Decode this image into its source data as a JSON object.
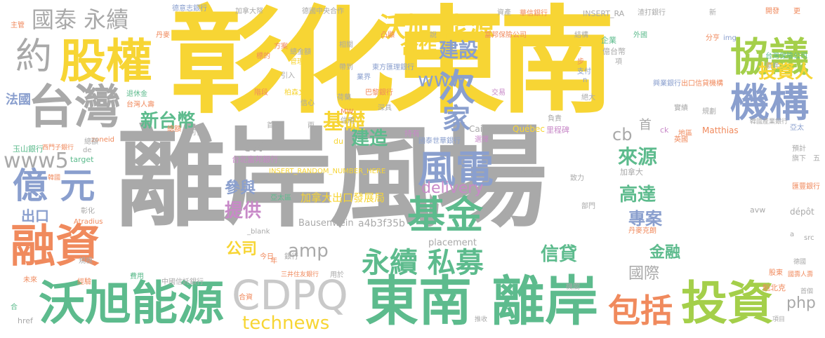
{
  "palette": {
    "yellow": "#f7d534",
    "gray": "#a9a9a9",
    "green": "#5dbb8d",
    "blue": "#8a9fce",
    "purple": "#c889c8",
    "orange": "#f08a5d",
    "lime": "#a4cf4a",
    "light": "#c9c9c9"
  },
  "words": [
    {
      "id": "w-lian",
      "text": "離岸風場",
      "color": "gray"
    },
    {
      "id": "w-zhanghua-dongnan",
      "text": "彰化東南",
      "color": "yellow"
    },
    {
      "id": "w-cdpq",
      "text": "CDPQ",
      "color": "light"
    },
    {
      "id": "w-dongnan",
      "text": "東南",
      "color": "green"
    },
    {
      "id": "w-lian2",
      "text": "離岸",
      "color": "green"
    },
    {
      "id": "w-wojxu-energy",
      "text": "沃旭能源",
      "color": "green"
    },
    {
      "id": "w-taiwan",
      "text": "台灣",
      "color": "gray"
    },
    {
      "id": "w-guquan",
      "text": "股權",
      "color": "yellow"
    },
    {
      "id": "w-rongzi",
      "text": "融資",
      "color": "orange"
    },
    {
      "id": "w-touzi",
      "text": "投資",
      "color": "lime"
    },
    {
      "id": "w-baokuo",
      "text": "包括",
      "color": "orange"
    },
    {
      "id": "w-jijin",
      "text": "基金",
      "color": "green"
    },
    {
      "id": "w-fengdian",
      "text": "風電",
      "color": "blue"
    },
    {
      "id": "w-jigou",
      "text": "機構",
      "color": "blue"
    },
    {
      "id": "w-xieyi",
      "text": "協議",
      "color": "lime"
    },
    {
      "id": "w-yiyuan",
      "text": "億 元",
      "color": "blue"
    },
    {
      "id": "w-guotai",
      "text": "國泰 永續",
      "color": "gray"
    },
    {
      "id": "w-wojxu2",
      "text": "沃旭",
      "color": "yellow"
    },
    {
      "id": "w-nengyuan",
      "text": "能源",
      "color": "yellow"
    },
    {
      "id": "w-ci",
      "text": "次",
      "color": "blue"
    },
    {
      "id": "w-jia",
      "text": "家",
      "color": "blue"
    },
    {
      "id": "w-yue",
      "text": "約",
      "color": "gray"
    },
    {
      "id": "w-yongxu-simu",
      "text": "永續 私募",
      "color": "green"
    },
    {
      "id": "w-touziren",
      "text": "投資人",
      "color": "yellow"
    },
    {
      "id": "w-jianshe",
      "text": "建設",
      "color": "blue"
    },
    {
      "id": "w-hezuo",
      "text": "合作",
      "color": "yellow"
    },
    {
      "id": "w-www",
      "text": "www",
      "color": "blue"
    },
    {
      "id": "w-xintaibi",
      "text": "新台幣",
      "color": "green"
    },
    {
      "id": "w-jichu",
      "text": "基礎",
      "color": "yellow"
    },
    {
      "id": "w-jianzao",
      "text": "建造",
      "color": "green"
    },
    {
      "id": "w-www5",
      "text": "www5",
      "color": "gray"
    },
    {
      "id": "w-tw",
      "text": "tw",
      "color": "gray"
    },
    {
      "id": "w-delivery",
      "text": "delivery",
      "color": "purple"
    },
    {
      "id": "w-canyu",
      "text": "參與",
      "color": "blue"
    },
    {
      "id": "w-tigong",
      "text": "提供",
      "color": "purple"
    },
    {
      "id": "w-gongsi",
      "text": "公司",
      "color": "yellow"
    },
    {
      "id": "w-amp",
      "text": "amp",
      "color": "gray"
    },
    {
      "id": "w-laiyuan",
      "text": "來源",
      "color": "green"
    },
    {
      "id": "w-gaoda",
      "text": "高達",
      "color": "green"
    },
    {
      "id": "w-zhuanan",
      "text": "專案",
      "color": "blue"
    },
    {
      "id": "w-jinrong",
      "text": "金融",
      "color": "green"
    },
    {
      "id": "w-guoji",
      "text": "國際",
      "color": "gray"
    },
    {
      "id": "w-xindai",
      "text": "信貸",
      "color": "green"
    },
    {
      "id": "w-technews",
      "text": "technews",
      "color": "yellow"
    },
    {
      "id": "w-php",
      "text": "php",
      "color": "gray"
    },
    {
      "id": "w-cb",
      "text": "cb",
      "color": "gray"
    },
    {
      "id": "w-shou",
      "text": "首",
      "color": "gray"
    },
    {
      "id": "w-chukou",
      "text": "出口",
      "color": "blue"
    },
    {
      "id": "w-faguo",
      "text": "法國",
      "color": "blue"
    },
    {
      "id": "w-jianada-cb",
      "text": "加拿大出口發展局",
      "color": "yellow"
    },
    {
      "id": "w-a4b",
      "text": "a4b3f35b",
      "color": "gray"
    },
    {
      "id": "w-bausen",
      "text": "Bausenwein",
      "color": "gray"
    },
    {
      "id": "w-placement",
      "text": "placement",
      "color": "gray"
    },
    {
      "id": "w-insert",
      "text": "INSERT_RANDOM_NUMBER_HERE",
      "color": "yellow"
    },
    {
      "id": "w-taibei-fubon",
      "text": "台北富邦銀行",
      "color": "purple"
    },
    {
      "id": "w-yushan",
      "text": "玉山銀行",
      "color": "green"
    },
    {
      "id": "w-zoneid",
      "text": "zoneid",
      "color": "orange"
    },
    {
      "id": "w-target",
      "text": "target",
      "color": "green"
    },
    {
      "id": "w-de",
      "text": "de",
      "color": "gray"
    },
    {
      "id": "w-blank",
      "text": "_blank",
      "color": "gray"
    },
    {
      "id": "w-quebec",
      "text": "Québec",
      "color": "yellow"
    },
    {
      "id": "w-caisse",
      "text": "Caisse",
      "color": "gray"
    },
    {
      "id": "w-matthias",
      "text": "Matthias",
      "color": "orange"
    },
    {
      "id": "w-depot",
      "text": "dépôt",
      "color": "gray"
    },
    {
      "id": "w-avw",
      "text": "avw",
      "color": "gray"
    },
    {
      "id": "w-src",
      "text": "src",
      "color": "gray"
    },
    {
      "id": "w-href",
      "text": "href",
      "color": "gray"
    },
    {
      "id": "w-du",
      "text": "du",
      "color": "yellow"
    },
    {
      "id": "w-atradius",
      "text": "Atradius",
      "color": "orange"
    },
    {
      "id": "w-ck",
      "text": "ck",
      "color": "purple"
    },
    {
      "id": "w-img",
      "text": "img",
      "color": "blue"
    },
    {
      "id": "w-insert-ra",
      "text": "INSERT_RA",
      "color": "gray"
    },
    {
      "id": "w-dez-bank",
      "text": "德意志銀行",
      "color": "blue"
    },
    {
      "id": "w-jianada-dabei",
      "text": "加拿大帑",
      "color": "gray"
    },
    {
      "id": "w-deguo-zhongyang",
      "text": "德國中央合作",
      "color": "gray"
    },
    {
      "id": "w-zichan",
      "text": "資產",
      "color": "gray"
    },
    {
      "id": "w-huaxin",
      "text": "華信銀行",
      "color": "orange"
    },
    {
      "id": "w-zaoda",
      "text": "渣打銀行",
      "color": "gray"
    },
    {
      "id": "w-xin",
      "text": "新",
      "color": "gray"
    },
    {
      "id": "w-kaifa",
      "text": "開發",
      "color": "orange"
    },
    {
      "id": "w-geng",
      "text": "更",
      "color": "orange"
    },
    {
      "id": "w-zhuguan",
      "text": "主管",
      "color": "orange"
    },
    {
      "id": "w-danmai",
      "text": "丹麥",
      "color": "orange"
    },
    {
      "id": "w-tufang",
      "text": "凸顯",
      "color": "orange"
    },
    {
      "id": "w-shuo",
      "text": "說",
      "color": "gray"
    },
    {
      "id": "w-fubon-baoxian",
      "text": "富邦保險公司",
      "color": "orange"
    },
    {
      "id": "w-jiegou",
      "text": "結構",
      "color": "gray"
    },
    {
      "id": "w-waiguo",
      "text": "外國",
      "color": "green"
    },
    {
      "id": "w-fenheng",
      "text": "分亨",
      "color": "orange"
    },
    {
      "id": "w-qiye",
      "text": "企業",
      "color": "green"
    },
    {
      "id": "w-taiwan-baoxian",
      "text": "台灣保險公司",
      "color": "green"
    },
    {
      "id": "w-yitai",
      "text": "億台幣",
      "color": "gray"
    },
    {
      "id": "w-fangan",
      "text": "方案",
      "color": "orange"
    },
    {
      "id": "w-biaode",
      "text": "標的",
      "color": "orange"
    },
    {
      "id": "w-zongjinyin",
      "text": "總金額",
      "color": "gray"
    },
    {
      "id": "w-guanli",
      "text": "管理",
      "color": "yellow"
    },
    {
      "id": "w-xiangguan",
      "text": "相關",
      "color": "gray"
    },
    {
      "id": "w-daidao",
      "text": "帶到",
      "color": "gray"
    },
    {
      "id": "w-yeje",
      "text": "業界",
      "color": "blue"
    },
    {
      "id": "w-dongfang",
      "text": "東方匯理銀行",
      "color": "blue"
    },
    {
      "id": "w-chin-bu",
      "text": "步",
      "color": "orange"
    },
    {
      "id": "w-xiang",
      "text": "項",
      "color": "gray"
    },
    {
      "id": "w-zhifu",
      "text": "支付",
      "color": "blue"
    },
    {
      "id": "w-xingye",
      "text": "興業銀行",
      "color": "blue"
    },
    {
      "id": "w-chukou-xindai",
      "text": "出口信貸機構",
      "color": "orange"
    },
    {
      "id": "w-haoyu",
      "text": "豪伴",
      "color": "gray"
    },
    {
      "id": "w-tuixiu",
      "text": "退休金",
      "color": "green"
    },
    {
      "id": "w-taiwan-renshou",
      "text": "台灣人壽",
      "color": "orange"
    },
    {
      "id": "w-jieduan",
      "text": "階段",
      "color": "orange"
    },
    {
      "id": "w-bosen",
      "text": "柏森文",
      "color": "yellow"
    },
    {
      "id": "w-bali",
      "text": "巴黎銀行",
      "color": "orange"
    },
    {
      "id": "w-yinru",
      "text": "引入",
      "color": "gray"
    },
    {
      "id": "w-jiaoyi",
      "text": "交易",
      "color": "purple"
    },
    {
      "id": "w-jueda",
      "text": "絕大",
      "color": "gray"
    },
    {
      "id": "w-xinxin",
      "text": "信心",
      "color": "gray"
    },
    {
      "id": "w-helan",
      "text": "荷蘭",
      "color": "gray"
    },
    {
      "id": "w-shenju",
      "text": "深具",
      "color": "gray"
    },
    {
      "id": "w-shijin",
      "text": "實績",
      "color": "gray"
    },
    {
      "id": "w-guihua",
      "text": "規劃",
      "color": "gray"
    },
    {
      "id": "w-zonge",
      "text": "總額",
      "color": "orange"
    },
    {
      "id": "w-keguan",
      "text": "可貴",
      "color": "gray"
    },
    {
      "id": "w-shoudu",
      "text": "首度",
      "color": "gray"
    },
    {
      "id": "w-liang",
      "text": "兩",
      "color": "gray"
    },
    {
      "id": "w-mw",
      "text": "MW",
      "color": "orange"
    },
    {
      "id": "w-xinyong",
      "text": "信用",
      "color": "gray"
    },
    {
      "id": "w-fuze",
      "text": "負責",
      "color": "gray"
    },
    {
      "id": "w-lichengbei",
      "text": "里程碑",
      "color": "purple"
    },
    {
      "id": "w-yatai",
      "text": "亞太",
      "color": "blue"
    },
    {
      "id": "w-hanguo-chanye",
      "text": "韓國產業銀行",
      "color": "gray"
    },
    {
      "id": "w-zonggu",
      "text": "總額",
      "color": "gray"
    },
    {
      "id": "w-ximen",
      "text": "西門子銀行",
      "color": "orange"
    },
    {
      "id": "w-chiyou",
      "text": "持有",
      "color": "purple"
    },
    {
      "id": "w-guotai-shihua",
      "text": "國泰世華銀行",
      "color": "blue"
    },
    {
      "id": "w-xuanze",
      "text": "選擇",
      "color": "purple"
    },
    {
      "id": "w-diqu",
      "text": "地區",
      "color": "orange"
    },
    {
      "id": "w-yingguo",
      "text": "英國",
      "color": "orange"
    },
    {
      "id": "w-yuji",
      "text": "預計",
      "color": "gray"
    },
    {
      "id": "w-qixia",
      "text": "旗下",
      "color": "gray"
    },
    {
      "id": "w-wu",
      "text": "五",
      "color": "gray"
    },
    {
      "id": "w-hanguo",
      "text": "韓國",
      "color": "orange"
    },
    {
      "id": "w-jiana-da",
      "text": "加拿大",
      "color": "gray"
    },
    {
      "id": "w-huifeng",
      "text": "匯豐銀行",
      "color": "orange"
    },
    {
      "id": "w-zhili",
      "text": "致力",
      "color": "gray"
    },
    {
      "id": "w-yongyou",
      "text": "擁有",
      "color": "gray"
    },
    {
      "id": "w-yatai-qu",
      "text": "亞太區",
      "color": "green"
    },
    {
      "id": "w-zhanghua",
      "text": "彰化",
      "color": "gray"
    },
    {
      "id": "w-ri",
      "text": "日",
      "color": "gray"
    },
    {
      "id": "w-bumen",
      "text": "部門",
      "color": "gray"
    },
    {
      "id": "w-danmaike",
      "text": "丹麥克朗",
      "color": "orange"
    },
    {
      "id": "w-shang",
      "text": "尚",
      "color": "gray"
    },
    {
      "id": "w-a",
      "text": "a",
      "color": "gray"
    },
    {
      "id": "w-guimo",
      "text": "規模",
      "color": "gray"
    },
    {
      "id": "w-jinri",
      "text": "今日",
      "color": "orange"
    },
    {
      "id": "w-yinhang",
      "text": "銀行",
      "color": "gray"
    },
    {
      "id": "w-weilai",
      "text": "未來",
      "color": "orange"
    },
    {
      "id": "w-jingyan",
      "text": "經驗",
      "color": "orange"
    },
    {
      "id": "w-feiyong",
      "text": "費用",
      "color": "green"
    },
    {
      "id": "w-nian",
      "text": "年",
      "color": "orange"
    },
    {
      "id": "w-sanjing",
      "text": "三井住友銀行",
      "color": "orange"
    },
    {
      "id": "w-yongyu",
      "text": "用於",
      "color": "gray"
    },
    {
      "id": "w-zhongguo-xintuo",
      "text": "中國信託銀行",
      "color": "gray"
    },
    {
      "id": "w-hehu",
      "text": "合資",
      "color": "orange"
    },
    {
      "id": "w-tuishou",
      "text": "推收",
      "color": "gray"
    },
    {
      "id": "w-jiguan",
      "text": "機關",
      "color": "gray"
    },
    {
      "id": "w-gudong",
      "text": "股東",
      "color": "orange"
    },
    {
      "id": "w-deguo",
      "text": "德國",
      "color": "gray"
    },
    {
      "id": "w-guoshou",
      "text": "國壽人壽",
      "color": "orange"
    },
    {
      "id": "w-kuibeike",
      "text": "魁北克",
      "color": "orange"
    },
    {
      "id": "w-shouge",
      "text": "首個",
      "color": "gray"
    },
    {
      "id": "w-xiangmu",
      "text": "項目",
      "color": "gray"
    },
    {
      "id": "w-he",
      "text": "合",
      "color": "green"
    },
    {
      "id": "w-n",
      "text": "n",
      "color": "blue"
    }
  ]
}
